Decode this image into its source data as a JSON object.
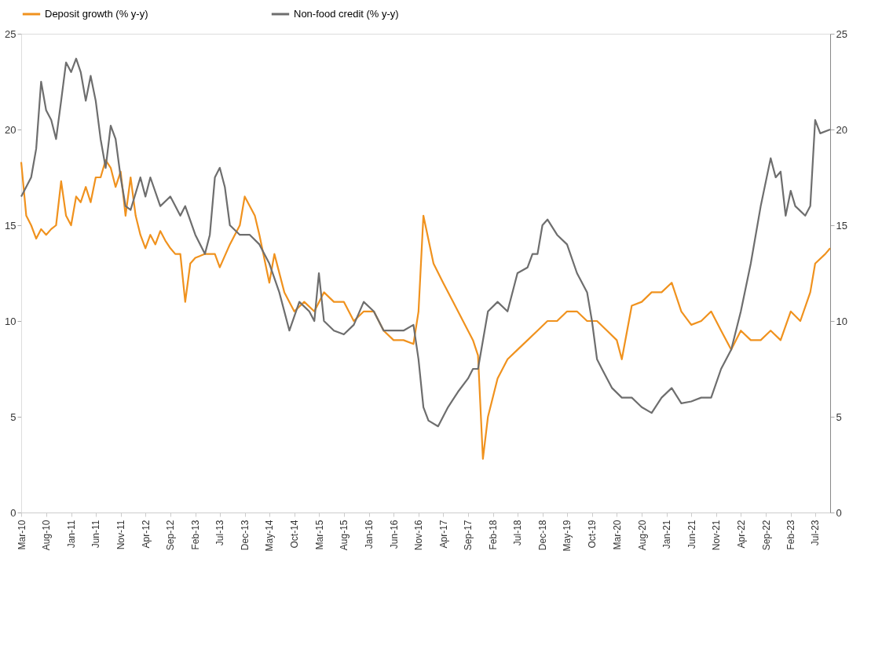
{
  "chart_data": {
    "type": "line",
    "xlim": [
      "2010-03",
      "2023-10"
    ],
    "xticks": [
      {
        "value": "2010-03",
        "label": "Mar-10"
      },
      {
        "value": "2010-08",
        "label": "Aug-10"
      },
      {
        "value": "2011-01",
        "label": "Jan-11"
      },
      {
        "value": "2011-06",
        "label": "Jun-11"
      },
      {
        "value": "2011-11",
        "label": "Nov-11"
      },
      {
        "value": "2012-04",
        "label": "Apr-12"
      },
      {
        "value": "2012-09",
        "label": "Sep-12"
      },
      {
        "value": "2013-02",
        "label": "Feb-13"
      },
      {
        "value": "2013-07",
        "label": "Jul-13"
      },
      {
        "value": "2013-12",
        "label": "Dec-13"
      },
      {
        "value": "2014-05",
        "label": "May-14"
      },
      {
        "value": "2014-10",
        "label": "Oct-14"
      },
      {
        "value": "2015-03",
        "label": "Mar-15"
      },
      {
        "value": "2015-08",
        "label": "Aug-15"
      },
      {
        "value": "2016-01",
        "label": "Jan-16"
      },
      {
        "value": "2016-06",
        "label": "Jun-16"
      },
      {
        "value": "2016-11",
        "label": "Nov-16"
      },
      {
        "value": "2017-04",
        "label": "Apr-17"
      },
      {
        "value": "2017-09",
        "label": "Sep-17"
      },
      {
        "value": "2018-02",
        "label": "Feb-18"
      },
      {
        "value": "2018-07",
        "label": "Jul-18"
      },
      {
        "value": "2018-12",
        "label": "Dec-18"
      },
      {
        "value": "2019-05",
        "label": "May-19"
      },
      {
        "value": "2019-10",
        "label": "Oct-19"
      },
      {
        "value": "2020-03",
        "label": "Mar-20"
      },
      {
        "value": "2020-08",
        "label": "Aug-20"
      },
      {
        "value": "2021-01",
        "label": "Jan-21"
      },
      {
        "value": "2021-06",
        "label": "Jun-21"
      },
      {
        "value": "2021-11",
        "label": "Nov-21"
      },
      {
        "value": "2022-04",
        "label": "Apr-22"
      },
      {
        "value": "2022-09",
        "label": "Sep-22"
      },
      {
        "value": "2023-02",
        "label": "Feb-23"
      },
      {
        "value": "2023-07",
        "label": "Jul-23"
      }
    ],
    "ylim": [
      0,
      25
    ],
    "yticks": [
      0,
      5,
      10,
      15,
      20,
      25
    ],
    "y2lim": [
      0,
      25
    ],
    "y2ticks": [
      0,
      5,
      10,
      15,
      20,
      25
    ],
    "grid": false,
    "legend": "top",
    "line_style": "solid",
    "marker": "none",
    "series": [
      {
        "name": "Deposit growth (% y-y)",
        "color": "#f0921e",
        "x": [
          "2010-03",
          "2010-04",
          "2010-05",
          "2010-06",
          "2010-07",
          "2010-08",
          "2010-09",
          "2010-10",
          "2010-11",
          "2010-12",
          "2011-01",
          "2011-02",
          "2011-03",
          "2011-04",
          "2011-05",
          "2011-06",
          "2011-07",
          "2011-08",
          "2011-09",
          "2011-10",
          "2011-11",
          "2011-12",
          "2012-01",
          "2012-02",
          "2012-03",
          "2012-04",
          "2012-05",
          "2012-06",
          "2012-07",
          "2012-08",
          "2012-09",
          "2012-10",
          "2012-11",
          "2012-12",
          "2013-01",
          "2013-02",
          "2013-04",
          "2013-06",
          "2013-07",
          "2013-09",
          "2013-11",
          "2013-12",
          "2014-02",
          "2014-03",
          "2014-05",
          "2014-06",
          "2014-08",
          "2014-10",
          "2014-12",
          "2015-02",
          "2015-04",
          "2015-06",
          "2015-08",
          "2015-10",
          "2015-12",
          "2016-02",
          "2016-04",
          "2016-06",
          "2016-08",
          "2016-10",
          "2016-11",
          "2016-12",
          "2017-02",
          "2017-04",
          "2017-06",
          "2017-08",
          "2017-10",
          "2017-11",
          "2017-12",
          "2018-01",
          "2018-03",
          "2018-05",
          "2018-07",
          "2018-09",
          "2018-11",
          "2019-01",
          "2019-03",
          "2019-05",
          "2019-07",
          "2019-09",
          "2019-11",
          "2020-01",
          "2020-03",
          "2020-04",
          "2020-06",
          "2020-08",
          "2020-10",
          "2020-12",
          "2021-02",
          "2021-04",
          "2021-06",
          "2021-08",
          "2021-10",
          "2021-12",
          "2022-02",
          "2022-04",
          "2022-06",
          "2022-08",
          "2022-10",
          "2022-12",
          "2023-02",
          "2023-04",
          "2023-06",
          "2023-07",
          "2023-09",
          "2023-10"
        ],
        "values": [
          18.3,
          15.5,
          15.0,
          14.3,
          14.8,
          14.5,
          14.8,
          15.0,
          17.3,
          15.5,
          15.0,
          16.5,
          16.2,
          17.0,
          16.2,
          17.5,
          17.5,
          18.4,
          18.0,
          17.0,
          17.8,
          15.5,
          17.5,
          15.5,
          14.5,
          13.8,
          14.5,
          14.0,
          14.7,
          14.2,
          13.8,
          13.5,
          13.5,
          11.0,
          13.0,
          13.3,
          13.5,
          13.5,
          12.8,
          14.0,
          15.0,
          16.5,
          15.5,
          14.5,
          12.0,
          13.5,
          11.5,
          10.5,
          11.0,
          10.5,
          11.5,
          11.0,
          11.0,
          10.0,
          10.5,
          10.5,
          9.5,
          9.0,
          9.0,
          8.8,
          10.5,
          15.5,
          13.0,
          12.0,
          11.0,
          10.0,
          9.0,
          8.2,
          2.8,
          5.0,
          7.0,
          8.0,
          8.5,
          9.0,
          9.5,
          10.0,
          10.0,
          10.5,
          10.5,
          10.0,
          10.0,
          9.5,
          9.0,
          8.0,
          10.8,
          11.0,
          11.5,
          11.5,
          12.0,
          10.5,
          9.8,
          10.0,
          10.5,
          9.5,
          8.5,
          9.5,
          9.0,
          9.0,
          9.5,
          9.0,
          10.5,
          10.0,
          11.5,
          13.0,
          13.5,
          13.8
        ]
      },
      {
        "name": "Non-food credit (% y-y)",
        "color": "#6e6e6e",
        "axis": "y2",
        "x": [
          "2010-03",
          "2010-05",
          "2010-06",
          "2010-07",
          "2010-08",
          "2010-09",
          "2010-10",
          "2010-11",
          "2010-12",
          "2011-01",
          "2011-02",
          "2011-03",
          "2011-04",
          "2011-05",
          "2011-06",
          "2011-07",
          "2011-08",
          "2011-09",
          "2011-10",
          "2011-11",
          "2011-12",
          "2012-01",
          "2012-03",
          "2012-04",
          "2012-05",
          "2012-07",
          "2012-09",
          "2012-11",
          "2012-12",
          "2013-02",
          "2013-04",
          "2013-05",
          "2013-06",
          "2013-07",
          "2013-08",
          "2013-09",
          "2013-11",
          "2014-01",
          "2014-03",
          "2014-05",
          "2014-07",
          "2014-09",
          "2014-11",
          "2015-01",
          "2015-02",
          "2015-03",
          "2015-04",
          "2015-06",
          "2015-08",
          "2015-10",
          "2015-12",
          "2016-02",
          "2016-04",
          "2016-06",
          "2016-08",
          "2016-10",
          "2016-11",
          "2016-12",
          "2017-01",
          "2017-03",
          "2017-05",
          "2017-07",
          "2017-09",
          "2017-10",
          "2017-11",
          "2018-01",
          "2018-03",
          "2018-05",
          "2018-07",
          "2018-09",
          "2018-10",
          "2018-11",
          "2018-12",
          "2019-01",
          "2019-03",
          "2019-05",
          "2019-07",
          "2019-09",
          "2019-10",
          "2019-11",
          "2019-12",
          "2020-02",
          "2020-04",
          "2020-06",
          "2020-08",
          "2020-10",
          "2020-12",
          "2021-02",
          "2021-04",
          "2021-06",
          "2021-08",
          "2021-10",
          "2021-12",
          "2022-02",
          "2022-04",
          "2022-06",
          "2022-08",
          "2022-10",
          "2022-11",
          "2022-12",
          "2023-01",
          "2023-02",
          "2023-03",
          "2023-05",
          "2023-06",
          "2023-07",
          "2023-08",
          "2023-10"
        ],
        "values": [
          16.5,
          17.5,
          19.0,
          22.5,
          21.0,
          20.5,
          19.5,
          21.5,
          23.5,
          23.0,
          23.7,
          23.0,
          21.5,
          22.8,
          21.5,
          19.5,
          18.0,
          20.2,
          19.5,
          17.5,
          16.0,
          15.8,
          17.5,
          16.5,
          17.5,
          16.0,
          16.5,
          15.5,
          16.0,
          14.5,
          13.5,
          14.5,
          17.5,
          18.0,
          17.0,
          15.0,
          14.5,
          14.5,
          14.0,
          13.0,
          11.5,
          9.5,
          11.0,
          10.5,
          10.0,
          12.5,
          10.0,
          9.5,
          9.3,
          9.8,
          11.0,
          10.5,
          9.5,
          9.5,
          9.5,
          9.8,
          8.0,
          5.5,
          4.8,
          4.5,
          5.5,
          6.3,
          7.0,
          7.5,
          7.5,
          10.5,
          11.0,
          10.5,
          12.5,
          12.8,
          13.5,
          13.5,
          15.0,
          15.3,
          14.5,
          14.0,
          12.5,
          11.5,
          10.0,
          8.0,
          7.5,
          6.5,
          6.0,
          6.0,
          5.5,
          5.2,
          6.0,
          6.5,
          5.7,
          5.8,
          6.0,
          6.0,
          7.5,
          8.5,
          10.5,
          13.0,
          16.0,
          18.5,
          17.5,
          17.8,
          15.5,
          16.8,
          16.0,
          15.5,
          16.0,
          20.5,
          19.8,
          20.0
        ]
      }
    ]
  }
}
